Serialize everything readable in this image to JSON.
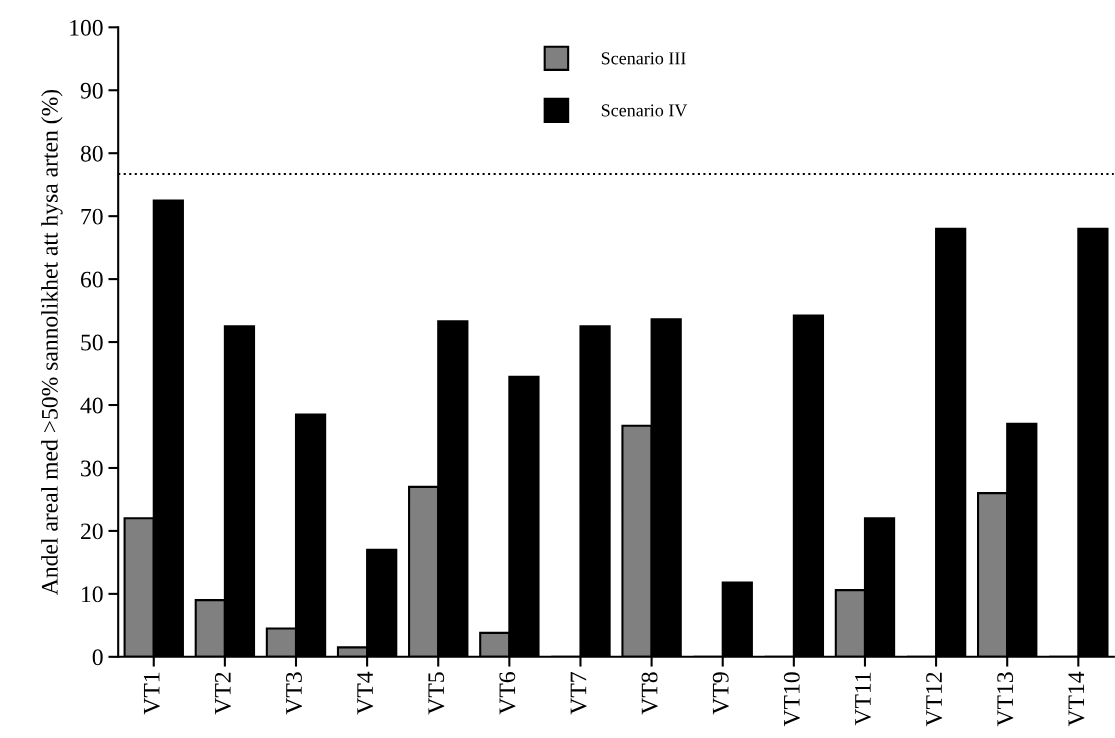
{
  "chart_data": {
    "type": "bar",
    "ylabel": "Andel areal med >50% sannolikhet att hysa arten (%)",
    "categories": [
      "VT1",
      "VT2",
      "VT3",
      "VT4",
      "VT5",
      "VT6",
      "VT7",
      "VT8",
      "VT9",
      "VT10",
      "VT11",
      "VT12",
      "VT13",
      "VT14"
    ],
    "series": [
      {
        "name": "Scenario III",
        "color": "#808080",
        "values": [
          22,
          9,
          4.5,
          1.5,
          27,
          3.8,
          0,
          36.7,
          0,
          0,
          10.6,
          0,
          26,
          0
        ]
      },
      {
        "name": "Scenario IV",
        "color": "#000000",
        "values": [
          72.5,
          52.5,
          38.5,
          17,
          53.3,
          44.5,
          52.5,
          53.6,
          11.8,
          54.2,
          22,
          68,
          37,
          68
        ]
      }
    ],
    "ylim": [
      0,
      100
    ],
    "yticks": [
      0,
      10,
      20,
      30,
      40,
      50,
      60,
      70,
      80,
      90,
      100
    ],
    "ref_lines": [
      {
        "axis": "y",
        "value": 76.7,
        "line_style": "dotted",
        "color": "#000000"
      }
    ],
    "grid": false,
    "legend": "top"
  }
}
